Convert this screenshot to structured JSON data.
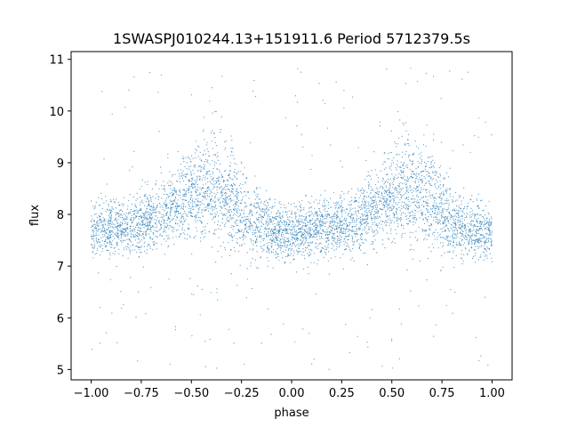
{
  "chart_data": {
    "type": "scatter",
    "title": "1SWASPJ010244.13+151911.6 Period 5712379.5s",
    "xlabel": "phase",
    "ylabel": "flux",
    "xlim": [
      -1.1,
      1.1
    ],
    "ylim": [
      4.8,
      11.15
    ],
    "x_ticks": [
      -1.0,
      -0.75,
      -0.5,
      -0.25,
      0.0,
      0.25,
      0.5,
      0.75,
      1.0
    ],
    "x_tick_labels": [
      "−1.00",
      "−0.75",
      "−0.50",
      "−0.25",
      "0.00",
      "0.25",
      "0.50",
      "0.75",
      "1.00"
    ],
    "y_ticks": [
      5,
      6,
      7,
      8,
      9,
      10,
      11
    ],
    "y_tick_labels": [
      "5",
      "6",
      "7",
      "8",
      "9",
      "10",
      "11"
    ],
    "grid": false,
    "legend": "none",
    "marker_color": "#1f77b4",
    "series": [
      {
        "x": [
          -1.0,
          -0.9,
          -0.8,
          -0.7,
          -0.6,
          -0.5,
          -0.4,
          -0.3,
          -0.2,
          -0.1,
          0.0,
          0.1,
          0.2,
          0.3,
          0.4,
          0.5,
          0.6,
          0.7,
          0.8,
          0.9,
          1.0
        ],
        "center": [
          7.7,
          7.75,
          7.8,
          7.9,
          8.1,
          8.4,
          8.5,
          8.3,
          7.85,
          7.7,
          7.65,
          7.7,
          7.75,
          7.8,
          8.1,
          8.4,
          8.5,
          8.3,
          7.85,
          7.7,
          7.65
        ],
        "spread": [
          0.35,
          0.4,
          0.4,
          0.45,
          0.5,
          0.6,
          0.7,
          0.65,
          0.5,
          0.4,
          0.38,
          0.4,
          0.4,
          0.45,
          0.5,
          0.6,
          0.7,
          0.65,
          0.5,
          0.4,
          0.35
        ],
        "outlier_range": [
          5.0,
          10.85
        ]
      }
    ]
  }
}
